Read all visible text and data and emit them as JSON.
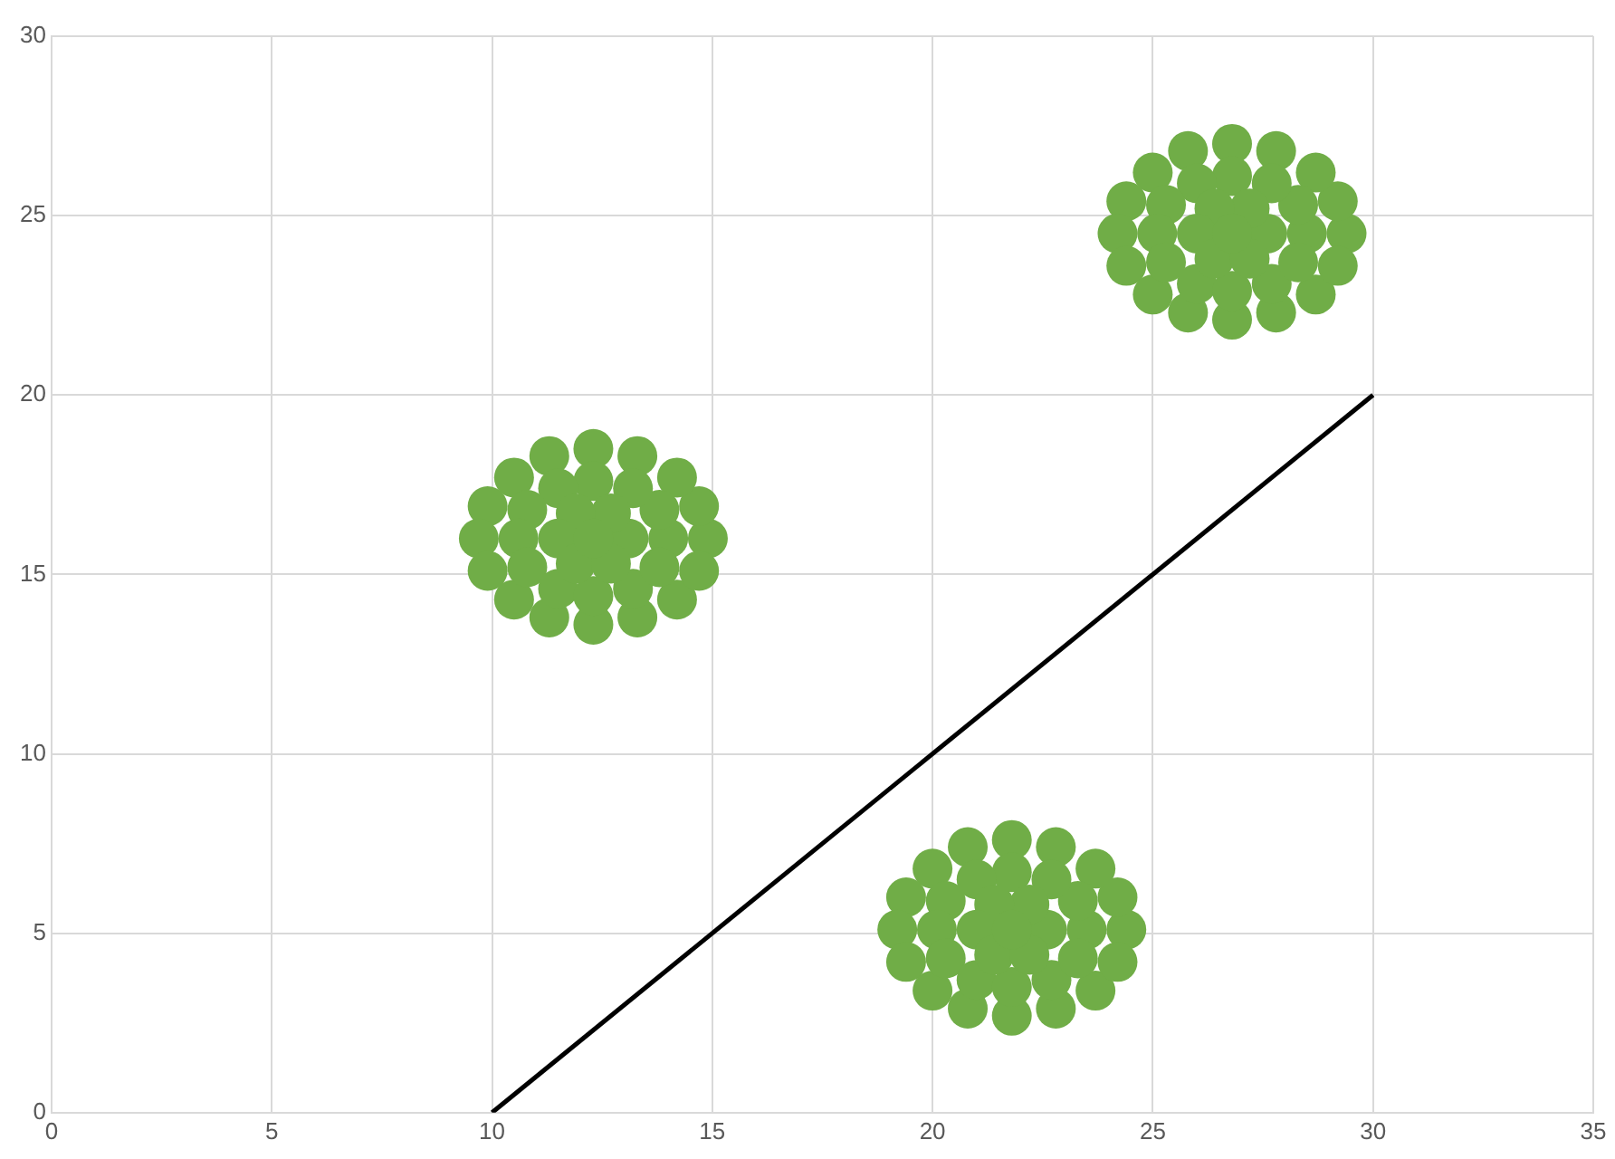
{
  "chart_data": {
    "type": "scatter",
    "xlim": [
      0,
      35
    ],
    "ylim": [
      0,
      30
    ],
    "xticks": [
      0,
      5,
      10,
      15,
      20,
      25,
      30,
      35
    ],
    "yticks": [
      0,
      5,
      10,
      15,
      20,
      25,
      30
    ],
    "grid": true,
    "series": [
      {
        "marker": "circle",
        "color": "#70ad47",
        "x": [
          14.9,
          14.7,
          14.2,
          13.3,
          12.3,
          11.3,
          10.5,
          9.9,
          9.7,
          9.9,
          10.5,
          11.3,
          12.3,
          13.3,
          14.2,
          14.7,
          14.0,
          13.8,
          13.2,
          12.3,
          11.5,
          10.8,
          10.6,
          10.8,
          11.5,
          12.3,
          13.2,
          13.8,
          13.1,
          12.7,
          11.9,
          11.5,
          11.9,
          12.7,
          12.3,
          24.4,
          24.2,
          23.7,
          22.8,
          21.8,
          20.8,
          20.0,
          19.4,
          19.2,
          19.4,
          20.0,
          20.8,
          21.8,
          22.8,
          23.7,
          24.2,
          23.5,
          23.3,
          22.7,
          21.8,
          21.0,
          20.3,
          20.1,
          20.3,
          21.0,
          21.8,
          22.7,
          23.3,
          22.6,
          22.2,
          21.4,
          21.0,
          21.4,
          22.2,
          21.8,
          29.4,
          29.2,
          28.7,
          27.8,
          26.8,
          25.8,
          25.0,
          24.4,
          24.2,
          24.4,
          25.0,
          25.8,
          26.8,
          27.8,
          28.7,
          29.2,
          28.5,
          28.3,
          27.7,
          26.8,
          26.0,
          25.3,
          25.1,
          25.3,
          26.0,
          26.8,
          27.7,
          28.3,
          27.6,
          27.2,
          26.4,
          26.0,
          26.4,
          27.2,
          26.8
        ],
        "values": [
          16,
          16.9,
          17.7,
          18.3,
          18.5,
          18.3,
          17.7,
          16.9,
          16,
          15.1,
          14.3,
          13.8,
          13.6,
          13.8,
          14.3,
          15.1,
          16,
          16.8,
          17.4,
          17.6,
          17.4,
          16.8,
          16,
          15.2,
          14.6,
          14.4,
          14.6,
          15.2,
          16,
          16.7,
          16.7,
          16,
          15.3,
          15.3,
          16,
          5.1,
          6.0,
          6.8,
          7.4,
          7.6,
          7.4,
          6.8,
          6.0,
          5.1,
          4.2,
          3.4,
          2.9,
          2.7,
          2.9,
          3.4,
          4.2,
          5.1,
          5.9,
          6.5,
          6.7,
          6.5,
          5.9,
          5.1,
          4.3,
          3.7,
          3.5,
          3.7,
          4.3,
          5.1,
          5.8,
          5.8,
          5.1,
          4.4,
          4.4,
          5.1,
          24.5,
          25.4,
          26.2,
          26.8,
          27.0,
          26.8,
          26.2,
          25.4,
          24.5,
          23.6,
          22.8,
          22.3,
          22.1,
          22.3,
          22.8,
          23.6,
          24.5,
          25.3,
          25.9,
          26.1,
          25.9,
          25.3,
          24.5,
          23.7,
          23.1,
          22.9,
          23.1,
          23.7,
          24.5,
          25.2,
          25.2,
          24.5,
          23.8,
          23.8,
          24.5
        ]
      },
      {
        "type": "line",
        "color": "#000000",
        "x": [
          10,
          30
        ],
        "values": [
          0,
          20
        ]
      }
    ]
  }
}
